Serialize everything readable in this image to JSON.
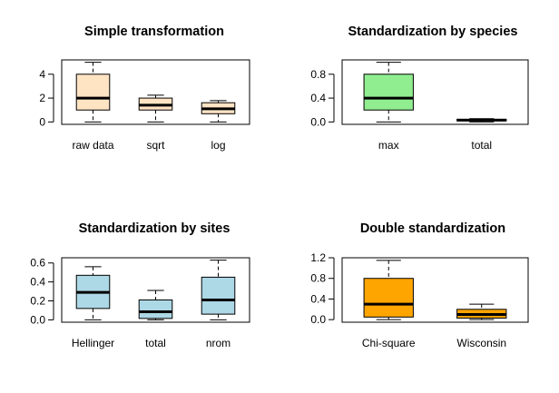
{
  "chart_data": [
    {
      "type": "boxplot",
      "title": "Simple transformation",
      "xlabel": "",
      "ylabel": "",
      "ylim": [
        -0.2,
        5.2
      ],
      "yticks": [
        0,
        2,
        4
      ],
      "fill": "#FFE4C4",
      "categories": [
        "raw data",
        "sqrt",
        "log"
      ],
      "boxes": [
        {
          "min": 0,
          "q1": 1.0,
          "median": 2.0,
          "q3": 4.0,
          "max": 5.0
        },
        {
          "min": 0,
          "q1": 1.0,
          "median": 1.41,
          "q3": 2.0,
          "max": 2.24
        },
        {
          "min": 0,
          "q1": 0.69,
          "median": 1.1,
          "q3": 1.61,
          "max": 1.79
        }
      ]
    },
    {
      "type": "boxplot",
      "title": "Standardization by species",
      "xlabel": "",
      "ylabel": "",
      "ylim": [
        -0.04,
        1.04
      ],
      "yticks": [
        0.0,
        0.4,
        0.8
      ],
      "tick_format": 1,
      "fill": "#90EE90",
      "categories": [
        "max",
        "total"
      ],
      "boxes": [
        {
          "min": 0,
          "q1": 0.2,
          "median": 0.4,
          "q3": 0.8,
          "max": 1.0
        },
        {
          "min": 0,
          "q1": 0.02,
          "median": 0.03,
          "q3": 0.045,
          "max": 0.055
        }
      ]
    },
    {
      "type": "boxplot",
      "title": "Standardization by sites",
      "xlabel": "",
      "ylabel": "",
      "ylim": [
        -0.025,
        0.655
      ],
      "yticks": [
        0.0,
        0.2,
        0.4,
        0.6
      ],
      "tick_format": 1,
      "fill": "#ADD8E6",
      "categories": [
        "Hellinger",
        "total",
        "nrom"
      ],
      "boxes": [
        {
          "min": 0,
          "q1": 0.12,
          "median": 0.29,
          "q3": 0.47,
          "max": 0.56
        },
        {
          "min": 0,
          "q1": 0.015,
          "median": 0.085,
          "q3": 0.21,
          "max": 0.31
        },
        {
          "min": 0,
          "q1": 0.06,
          "median": 0.21,
          "q3": 0.45,
          "max": 0.63
        }
      ]
    },
    {
      "type": "boxplot",
      "title": "Double standardization",
      "xlabel": "",
      "ylabel": "",
      "ylim": [
        -0.05,
        1.2
      ],
      "yticks": [
        0.0,
        0.4,
        0.8,
        1.2
      ],
      "tick_format": 1,
      "fill": "#FFA500",
      "categories": [
        "Chi-square",
        "Wisconsin"
      ],
      "boxes": [
        {
          "min": 0,
          "q1": 0.05,
          "median": 0.3,
          "q3": 0.8,
          "max": 1.15
        },
        {
          "min": 0,
          "q1": 0.03,
          "median": 0.1,
          "q3": 0.2,
          "max": 0.3
        }
      ]
    }
  ]
}
